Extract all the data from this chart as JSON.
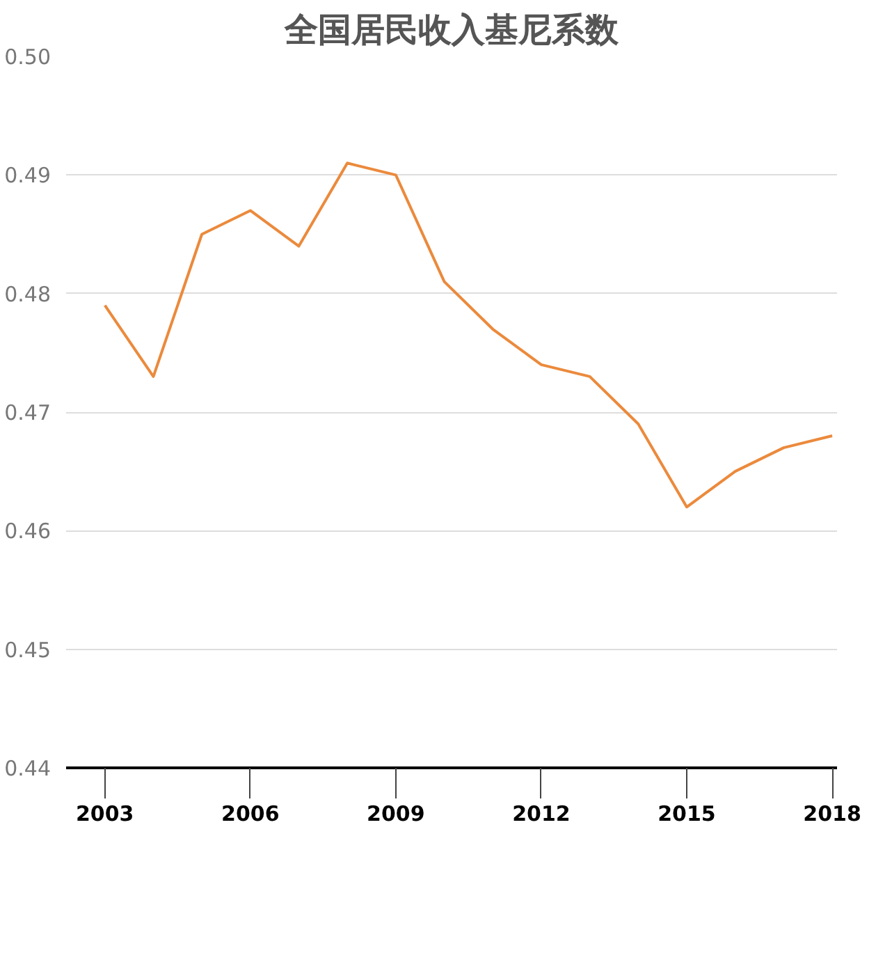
{
  "chart_data": {
    "type": "line",
    "title": "全国居民收入基尼系数",
    "x": [
      2003,
      2004,
      2005,
      2006,
      2007,
      2008,
      2009,
      2010,
      2011,
      2012,
      2013,
      2014,
      2015,
      2016,
      2017,
      2018
    ],
    "series": [
      {
        "color": "#eb8a3c",
        "values": [
          0.479,
          0.473,
          0.485,
          0.487,
          0.484,
          0.491,
          0.49,
          0.481,
          0.477,
          0.474,
          0.473,
          0.469,
          0.462,
          0.465,
          0.467,
          0.468
        ]
      }
    ],
    "xlim": [
      2002.2,
      2018.1
    ],
    "xticks": [
      2003,
      2006,
      2009,
      2012,
      2015,
      2018
    ],
    "ylim": [
      0.44,
      0.5
    ],
    "yticks": [
      {
        "value": 0.44,
        "label": "0.44"
      },
      {
        "value": 0.45,
        "label": "0.45"
      },
      {
        "value": 0.46,
        "label": "0.46"
      },
      {
        "value": 0.47,
        "label": "0.47"
      },
      {
        "value": 0.48,
        "label": "0.48"
      },
      {
        "value": 0.49,
        "label": "0.49"
      },
      {
        "value": 0.5,
        "label": "0.50"
      }
    ],
    "grid": "y",
    "line_style": "solid"
  }
}
